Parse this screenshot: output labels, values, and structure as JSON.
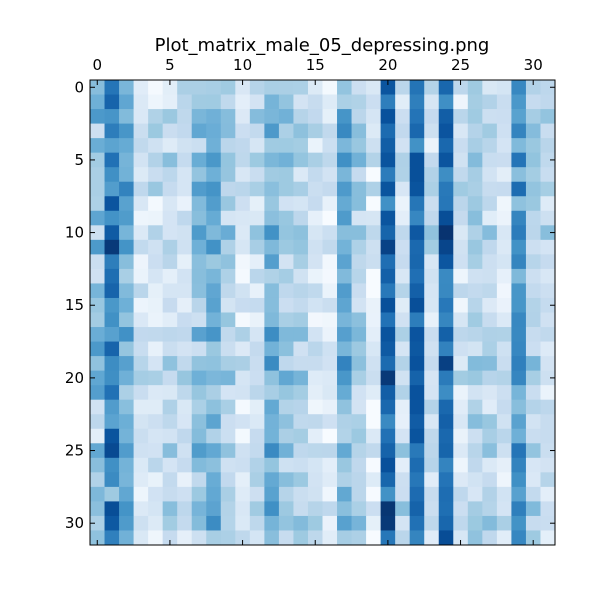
{
  "chart_data": {
    "type": "heatmap",
    "title": "Plot_matrix_male_05_depressing.png",
    "xlabel": "",
    "ylabel": "",
    "x_ticks": [
      0,
      5,
      10,
      15,
      20,
      25,
      30
    ],
    "y_ticks": [
      0,
      5,
      10,
      15,
      20,
      25,
      30
    ],
    "x_axis_position": "top",
    "xlim": [
      -0.5,
      31.5
    ],
    "ylim": [
      31.5,
      -0.5
    ],
    "colormap": "Blues",
    "vmin": 0,
    "vmax": 1,
    "grid": false,
    "rows": 32,
    "cols": 32,
    "column_profile": [
      0.25,
      0.55,
      0.45,
      0.15,
      0.15,
      0.2,
      0.2,
      0.35,
      0.45,
      0.3,
      0.15,
      0.2,
      0.45,
      0.3,
      0.25,
      0.15,
      0.1,
      0.45,
      0.3,
      0.1,
      0.75,
      0.2,
      0.75,
      0.2,
      0.75,
      0.15,
      0.3,
      0.25,
      0.15,
      0.55,
      0.25,
      0.2
    ],
    "row_profile": [
      0.0,
      0.0,
      0.1,
      0.1,
      0.0,
      0.1,
      0.0,
      0.1,
      0.0,
      0.0,
      0.1,
      0.1,
      0.0,
      0.0,
      0.0,
      0.0,
      0.0,
      0.1,
      0.0,
      0.1,
      0.1,
      0.0,
      0.0,
      0.0,
      0.0,
      0.1,
      0.0,
      0.0,
      0.0,
      0.1,
      0.1,
      0.0
    ],
    "noise_seed": 5
  }
}
